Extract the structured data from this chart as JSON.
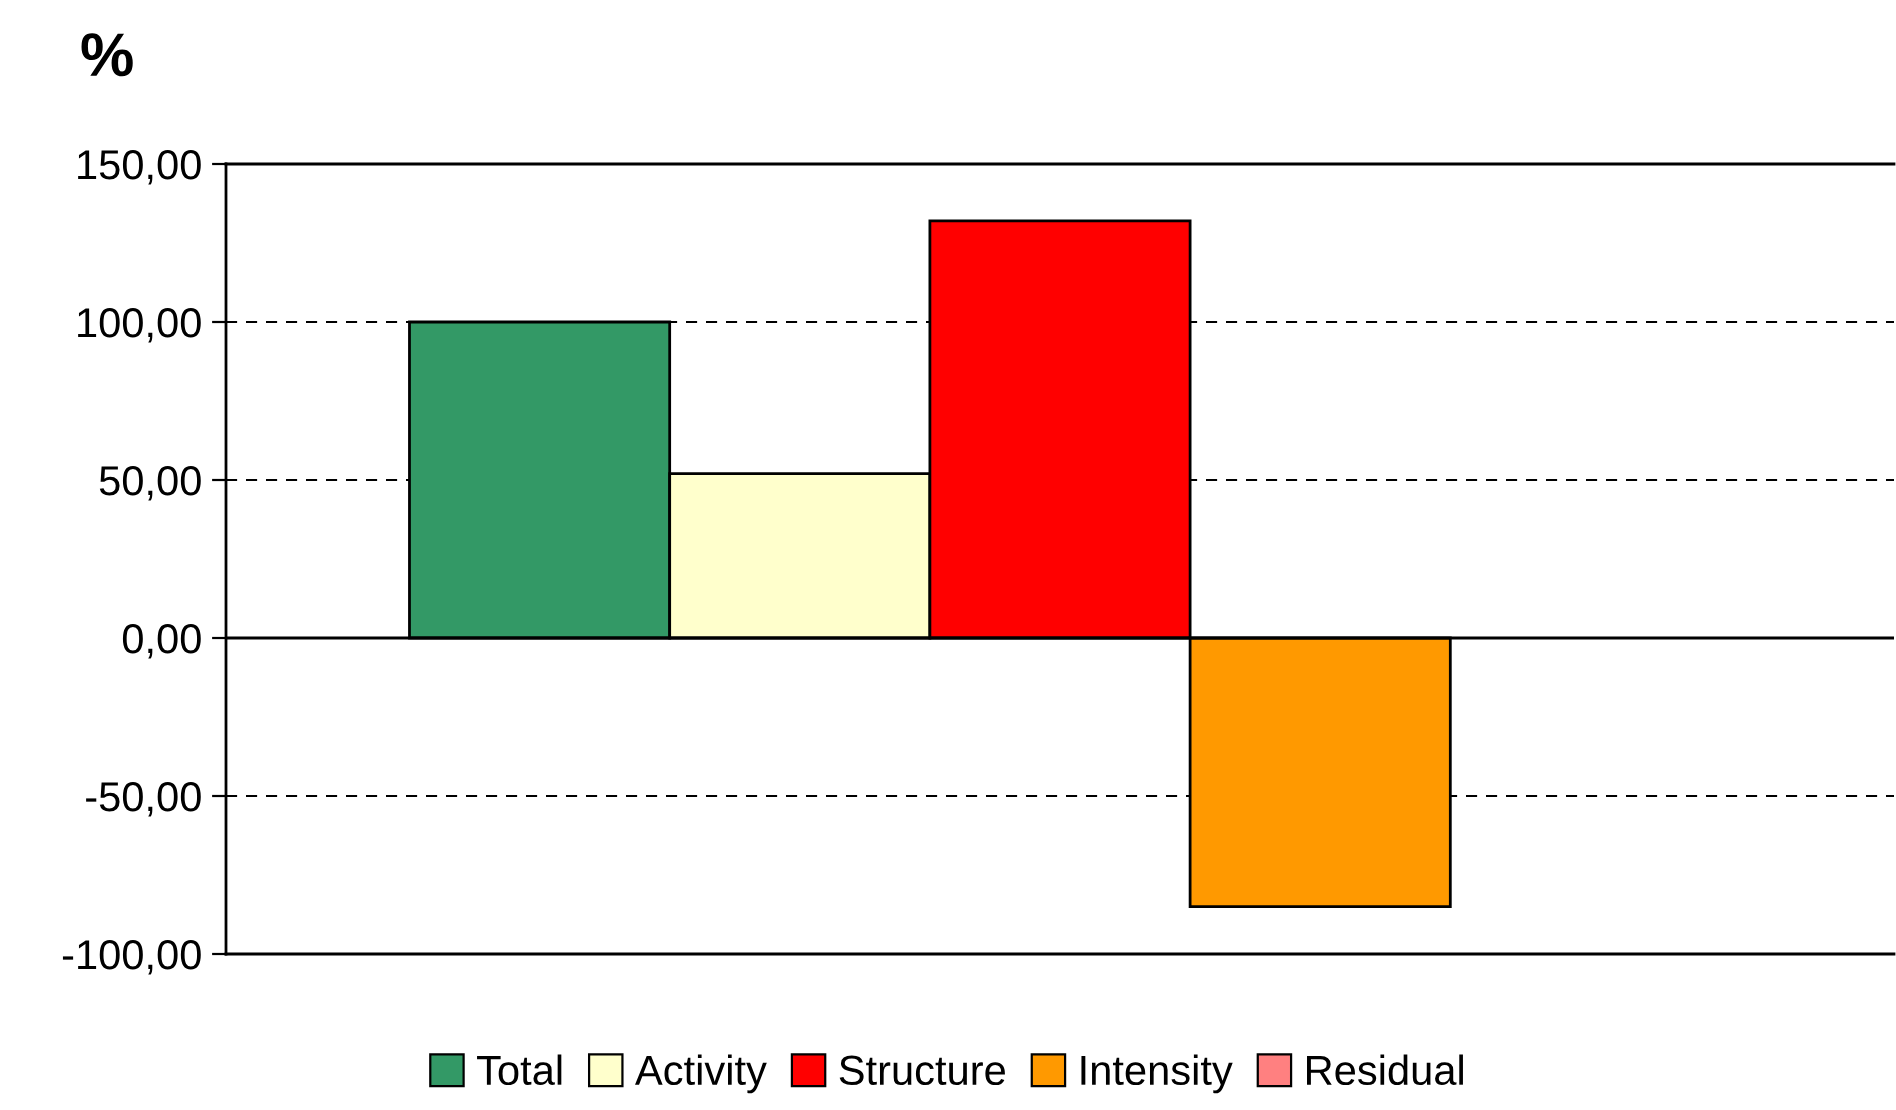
{
  "chart_data": {
    "type": "bar",
    "ylabel": "%",
    "categories": [
      null
    ],
    "series": [
      {
        "name": "Total",
        "color": "#339966",
        "values": [
          100
        ]
      },
      {
        "name": "Activity",
        "color": "#ffffcc",
        "values": [
          52
        ]
      },
      {
        "name": "Structure",
        "color": "#ff0000",
        "values": [
          132
        ]
      },
      {
        "name": "Intensity",
        "color": "#ff9900",
        "values": [
          -85
        ]
      },
      {
        "name": "Residual",
        "color": "#ff8080",
        "values": [
          null
        ]
      }
    ],
    "ylim": [
      -100,
      150
    ],
    "yticks": [
      {
        "value": -100,
        "label": "-100,00"
      },
      {
        "value": -50,
        "label": "-50,00"
      },
      {
        "value": 0,
        "label": "0,00"
      },
      {
        "value": 50,
        "label": "50,00"
      },
      {
        "value": 100,
        "label": "100,00"
      },
      {
        "value": 150,
        "label": "150,00"
      }
    ],
    "grid": "y",
    "line_style": "dashed",
    "legend": "bottom"
  }
}
